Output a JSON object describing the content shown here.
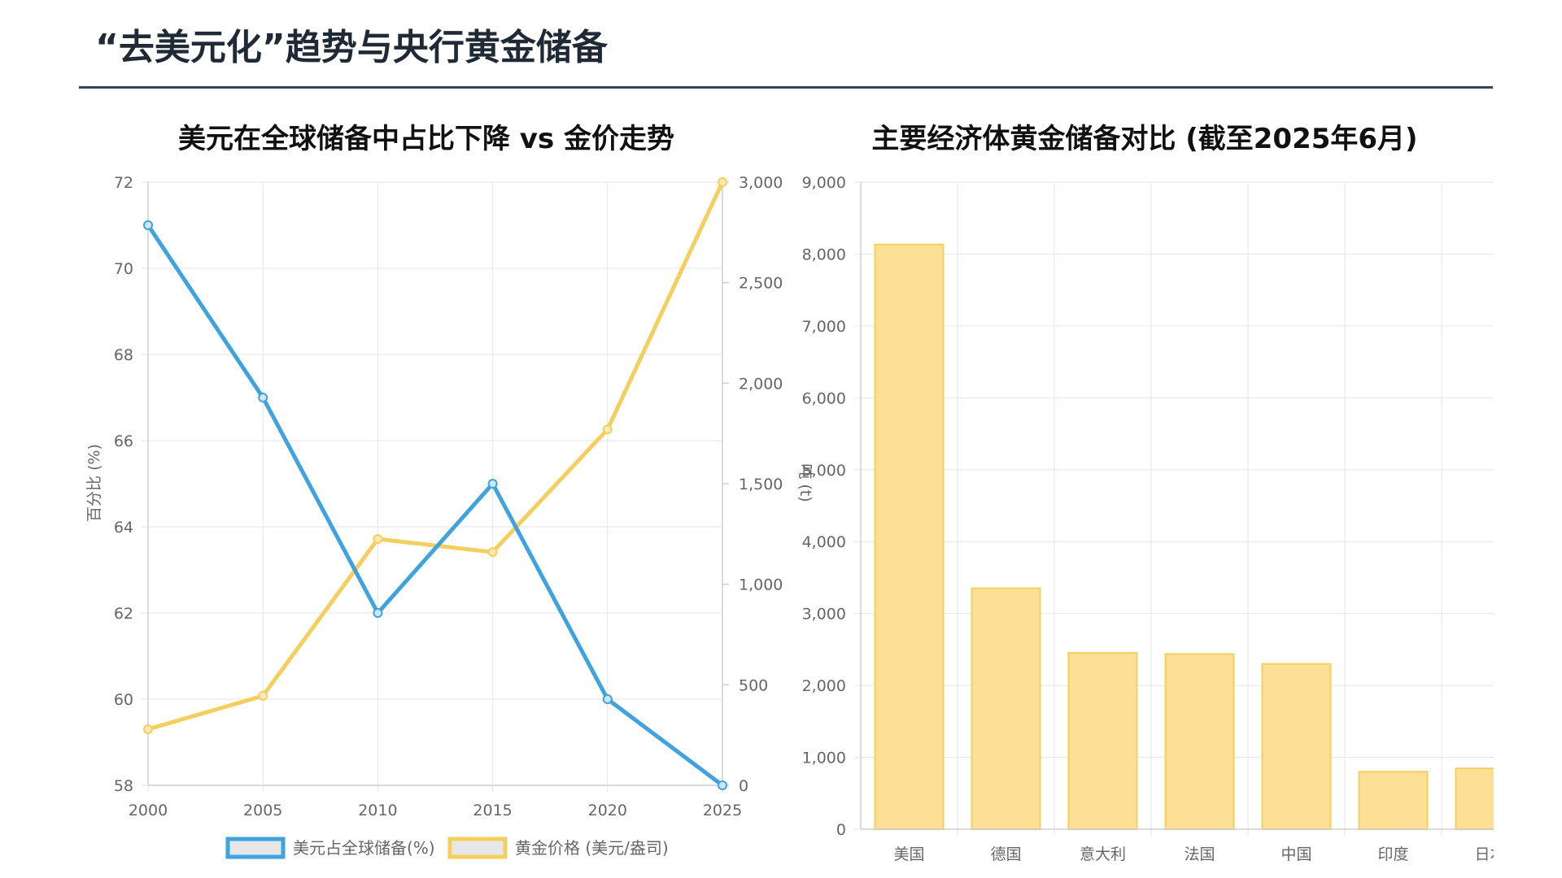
{
  "page": {
    "title": "“去美元化”趋势与央行黄金储备"
  },
  "chart_data": [
    {
      "type": "line",
      "title": "美元在全球储备中占比下降 vs 金价走势",
      "x": [
        2000,
        2005,
        2010,
        2015,
        2020,
        2025
      ],
      "series": [
        {
          "name": "美元占全球储备(%)",
          "values": [
            71,
            67,
            62,
            65,
            60,
            58
          ],
          "axis": "left",
          "color": "#3ea3de"
        },
        {
          "name": "黄金价格 (美元/盎司)",
          "values": [
            279,
            445,
            1225,
            1160,
            1770,
            3000
          ],
          "axis": "right",
          "color": "#f5cf5e"
        }
      ],
      "y_left": {
        "label": "百分比 (%)",
        "ylim": [
          58,
          72
        ],
        "ticks": [
          58,
          60,
          62,
          64,
          66,
          68,
          70,
          72
        ]
      },
      "y_right": {
        "label": "",
        "ylim": [
          0,
          3000
        ],
        "ticks": [
          0,
          500,
          1000,
          1500,
          2000,
          2500,
          3000
        ],
        "tick_labels": [
          "0",
          "500",
          "1,000",
          "1,500",
          "2,000",
          "2,500",
          "3,000"
        ]
      },
      "grid": true,
      "legend": "bottom"
    },
    {
      "type": "bar",
      "title": "主要经济体黄金储备对比 (截至2025年6月)",
      "categories": [
        "美国",
        "德国",
        "意大利",
        "法国",
        "中国",
        "印度",
        "日本"
      ],
      "values": [
        8133,
        3351,
        2452,
        2437,
        2299,
        800,
        846
      ],
      "color": "#fde096",
      "border_color": "#f5cf5e",
      "ylabel": "吨 (t)",
      "ylim": [
        0,
        9000
      ],
      "ticks": [
        0,
        1000,
        2000,
        3000,
        4000,
        5000,
        6000,
        7000,
        8000,
        9000
      ],
      "tick_labels": [
        "0",
        "1,000",
        "2,000",
        "3,000",
        "4,000",
        "5,000",
        "6,000",
        "7,000",
        "8,000",
        "9,000"
      ],
      "grid": true
    }
  ]
}
